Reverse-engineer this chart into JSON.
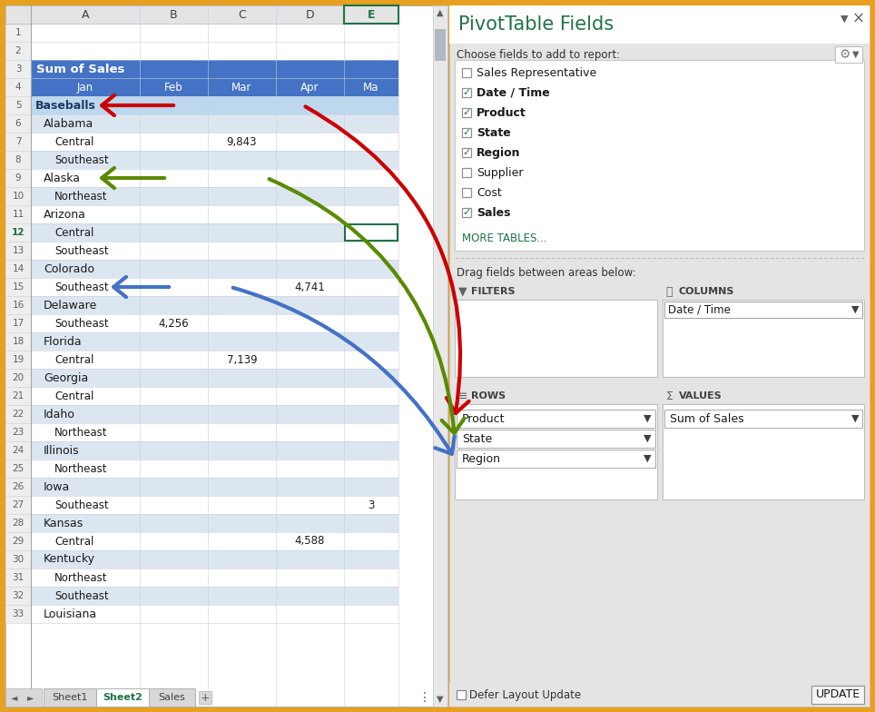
{
  "fig_width": 9.64,
  "fig_height": 7.84,
  "bg_color": "#e8a020",
  "header_bg": "#4472c4",
  "product_bg": "#bdd7ee",
  "col_letters": [
    "A",
    "B",
    "C",
    "D",
    "E"
  ],
  "col_months": [
    "Jan",
    "Feb",
    "Mar",
    "Apr",
    "Ma"
  ],
  "rows": [
    {
      "num": 1,
      "label": "",
      "type": "empty"
    },
    {
      "num": 2,
      "label": "",
      "type": "empty"
    },
    {
      "num": 3,
      "label": "Sum of Sales",
      "type": "header"
    },
    {
      "num": 4,
      "label": "",
      "type": "col_header"
    },
    {
      "num": 5,
      "label": "Baseballs",
      "type": "product"
    },
    {
      "num": 6,
      "label": "Alabama",
      "type": "state"
    },
    {
      "num": 7,
      "label": "Central",
      "type": "region",
      "col": "C",
      "val": "9,843"
    },
    {
      "num": 8,
      "label": "Southeast",
      "type": "region"
    },
    {
      "num": 9,
      "label": "Alaska",
      "type": "state"
    },
    {
      "num": 10,
      "label": "Northeast",
      "type": "region"
    },
    {
      "num": 11,
      "label": "Arizona",
      "type": "state"
    },
    {
      "num": 12,
      "label": "Central",
      "type": "region_selected"
    },
    {
      "num": 13,
      "label": "Southeast",
      "type": "region"
    },
    {
      "num": 14,
      "label": "Colorado",
      "type": "state"
    },
    {
      "num": 15,
      "label": "Southeast",
      "type": "region",
      "col": "D",
      "val": "4,741"
    },
    {
      "num": 16,
      "label": "Delaware",
      "type": "state"
    },
    {
      "num": 17,
      "label": "Southeast",
      "type": "region",
      "col": "B",
      "val": "4,256"
    },
    {
      "num": 18,
      "label": "Florida",
      "type": "state"
    },
    {
      "num": 19,
      "label": "Central",
      "type": "region",
      "col": "C",
      "val": "7,139"
    },
    {
      "num": 20,
      "label": "Georgia",
      "type": "state"
    },
    {
      "num": 21,
      "label": "Central",
      "type": "region"
    },
    {
      "num": 22,
      "label": "Idaho",
      "type": "state"
    },
    {
      "num": 23,
      "label": "Northeast",
      "type": "region"
    },
    {
      "num": 24,
      "label": "Illinois",
      "type": "state"
    },
    {
      "num": 25,
      "label": "Northeast",
      "type": "region"
    },
    {
      "num": 26,
      "label": "Iowa",
      "type": "state"
    },
    {
      "num": 27,
      "label": "Southeast",
      "type": "region",
      "col": "E",
      "val": "3"
    },
    {
      "num": 28,
      "label": "Kansas",
      "type": "state"
    },
    {
      "num": 29,
      "label": "Central",
      "type": "region",
      "col": "D",
      "val": "4,588"
    },
    {
      "num": 30,
      "label": "Kentucky",
      "type": "state"
    },
    {
      "num": 31,
      "label": "Northeast",
      "type": "region"
    },
    {
      "num": 32,
      "label": "Southeast",
      "type": "region"
    },
    {
      "num": 33,
      "label": "Louisiana",
      "type": "state"
    }
  ],
  "pivot_title": "PivotTable Fields",
  "pivot_subtitle": "Choose fields to add to report:",
  "fields": [
    {
      "name": "Sales Representative",
      "checked": false,
      "bold": false
    },
    {
      "name": "Date / Time",
      "checked": true,
      "bold": true
    },
    {
      "name": "Product",
      "checked": true,
      "bold": true
    },
    {
      "name": "State",
      "checked": true,
      "bold": true
    },
    {
      "name": "Region",
      "checked": true,
      "bold": true
    },
    {
      "name": "Supplier",
      "checked": false,
      "bold": false
    },
    {
      "name": "Cost",
      "checked": false,
      "bold": false
    },
    {
      "name": "Sales",
      "checked": true,
      "bold": true
    }
  ],
  "more_tables": "MORE TABLES...",
  "drag_text": "Drag fields between areas below:",
  "filters_label": "FILTERS",
  "columns_label": "COLUMNS",
  "rows_label": "ROWS",
  "values_label": "VALUES",
  "columns_field": "Date / Time",
  "rows_fields": [
    "Product",
    "State",
    "Region"
  ],
  "values_field": "Sum of Sales",
  "defer_text": "Defer Layout Update",
  "update_text": "UPDATE",
  "arrow_red": "#cc0000",
  "arrow_green": "#5a8a00",
  "arrow_blue": "#4472c4",
  "sheet_tabs": [
    "Sheet1",
    "Sheet2",
    "Sales"
  ],
  "active_tab": "Sheet2"
}
